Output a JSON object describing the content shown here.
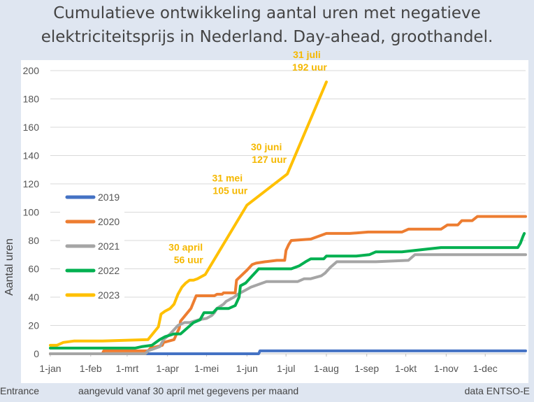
{
  "chart_data": {
    "type": "line",
    "title": "Cumulatieve ontwikkeling aantal uren met negatieve elektriciteitsprijs in Nederland. Day-ahead, groothandel.",
    "ylabel": "Aantal uren",
    "xlabel": "",
    "ylim": [
      0,
      200
    ],
    "yticks": [
      0,
      20,
      40,
      60,
      80,
      100,
      120,
      140,
      160,
      180,
      200
    ],
    "xlim": [
      0,
      365
    ],
    "xticks": [
      {
        "label": "1-jan",
        "day": 0
      },
      {
        "label": "1-feb",
        "day": 31
      },
      {
        "label": "1-mrt",
        "day": 59
      },
      {
        "label": "1-apr",
        "day": 90
      },
      {
        "label": "1-mei",
        "day": 120
      },
      {
        "label": "1-jun",
        "day": 151
      },
      {
        "label": "1-jul",
        "day": 181
      },
      {
        "label": "1-aug",
        "day": 212
      },
      {
        "label": "1-sep",
        "day": 243
      },
      {
        "label": "1-okt",
        "day": 273
      },
      {
        "label": "1-nov",
        "day": 304
      },
      {
        "label": "1-dec",
        "day": 334
      }
    ],
    "grid": true,
    "legend_position": "left-middle",
    "series": [
      {
        "name": "2019",
        "color": "#4472c4",
        "x": [
          0,
          160,
          161,
          360,
          365
        ],
        "y": [
          0,
          0,
          2,
          2,
          2
        ]
      },
      {
        "name": "2020",
        "color": "#ed7d31",
        "x": [
          0,
          40,
          41,
          75,
          77,
          86,
          87,
          95,
          97,
          99,
          100,
          108,
          112,
          126,
          128,
          132,
          133,
          142,
          143,
          151,
          153,
          155,
          158,
          165,
          174,
          180,
          181,
          183,
          185,
          200,
          212,
          230,
          244,
          270,
          275,
          300,
          305,
          313,
          316,
          324,
          328,
          365
        ],
        "y": [
          0,
          0,
          2,
          2,
          4,
          6,
          8,
          10,
          14,
          18,
          23,
          32,
          41,
          41,
          42,
          42,
          43,
          43,
          52,
          59,
          61,
          63,
          64,
          65,
          66,
          66,
          73,
          77,
          80,
          81,
          85,
          85,
          86,
          86,
          88,
          88,
          91,
          91,
          94,
          94,
          97,
          97
        ]
      },
      {
        "name": "2021",
        "color": "#a5a5a5",
        "x": [
          0,
          73,
          75,
          84,
          87,
          92,
          95,
          98,
          103,
          107,
          114,
          120,
          124,
          126,
          128,
          133,
          135,
          141,
          144,
          150,
          154,
          160,
          166,
          190,
          195,
          200,
          208,
          211,
          215,
          220,
          225,
          240,
          250,
          275,
          280,
          300,
          365
        ],
        "y": [
          0,
          0,
          2,
          5,
          10,
          14,
          17,
          20,
          22,
          22,
          24,
          25,
          27,
          29,
          32,
          35,
          37,
          40,
          42,
          45,
          47,
          49,
          51,
          51,
          53,
          53,
          55,
          57,
          61,
          65,
          65,
          65,
          65,
          66,
          70,
          70,
          70
        ]
      },
      {
        "name": "2022",
        "color": "#00b050",
        "x": [
          0,
          40,
          65,
          70,
          78,
          84,
          88,
          95,
          100,
          110,
          115,
          118,
          125,
          126,
          128,
          137,
          142,
          145,
          146,
          150,
          155,
          158,
          160,
          185,
          191,
          196,
          200,
          210,
          212,
          235,
          245,
          250,
          270,
          290,
          300,
          350,
          359,
          361,
          363,
          364
        ],
        "y": [
          4,
          4,
          4,
          5,
          6,
          10,
          12,
          14,
          14,
          22,
          24,
          29,
          29,
          30,
          32,
          32,
          34,
          40,
          48,
          50,
          55,
          58,
          60,
          60,
          62,
          65,
          67,
          67,
          69,
          69,
          70,
          72,
          72,
          74,
          75,
          75,
          75,
          78,
          83,
          85
        ]
      },
      {
        "name": "2023",
        "color": "#ffc000",
        "x": [
          0,
          5,
          10,
          18,
          40,
          75,
          83,
          85,
          88,
          92,
          95,
          98,
          101,
          104,
          107,
          110,
          113,
          119,
          151,
          182,
          212
        ],
        "y": [
          6,
          6,
          8,
          9,
          9,
          10,
          19,
          28,
          30,
          32,
          35,
          42,
          47,
          50,
          52,
          52,
          53,
          56,
          105,
          127,
          192
        ]
      }
    ],
    "annotations": [
      {
        "lines": [
          "30 april",
          "56 uur"
        ],
        "day": 119,
        "value": 56
      },
      {
        "lines": [
          "31 mei",
          "105 uur"
        ],
        "day": 151,
        "value": 105
      },
      {
        "lines": [
          "30 juni",
          "127 uur"
        ],
        "day": 181,
        "value": 127
      },
      {
        "lines": [
          "31 juli",
          "192 uur"
        ],
        "day": 212,
        "value": 192
      }
    ]
  },
  "footer": {
    "left": "Entrance",
    "center": "aangevuld vanaf 30 april met gegevens per maand",
    "right": "data ENTSO-E"
  }
}
